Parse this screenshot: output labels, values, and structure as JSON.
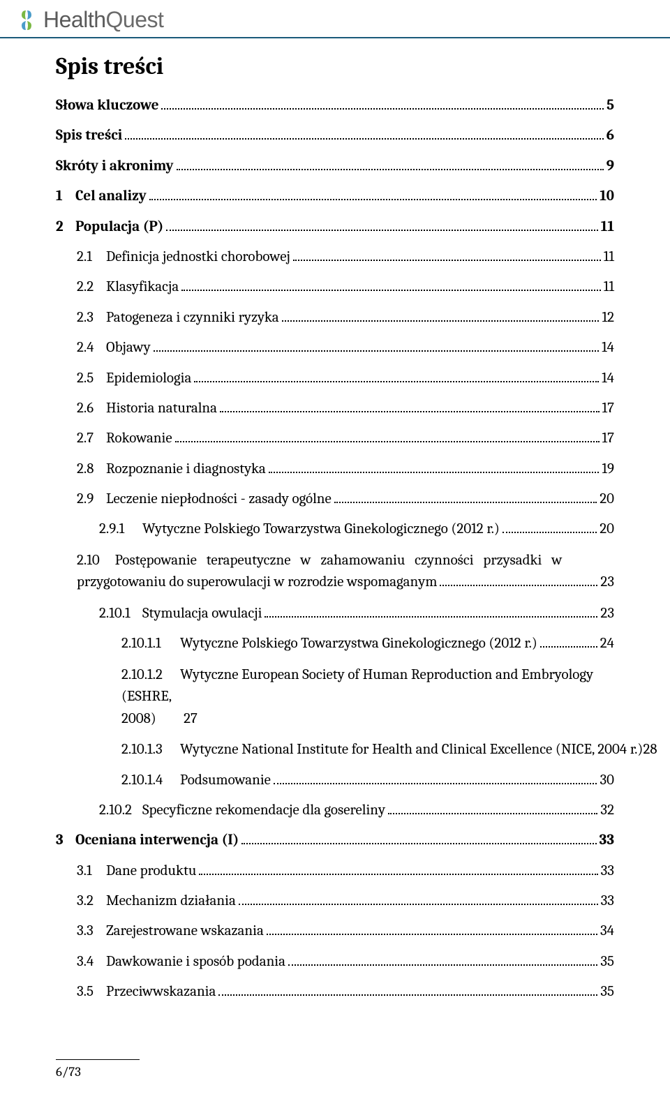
{
  "logo": {
    "text1": "Health",
    "text2": "Quest"
  },
  "toc_title": "Spis treści",
  "entries": [
    {
      "num": "",
      "label": "Słowa kluczowe",
      "page": "5",
      "bold": true,
      "indent": 0,
      "numw": ""
    },
    {
      "num": "",
      "label": "Spis treści",
      "page": "6",
      "bold": true,
      "indent": 0,
      "numw": ""
    },
    {
      "num": "",
      "label": "Skróty i akronimy",
      "page": "9",
      "bold": true,
      "indent": 0,
      "numw": ""
    },
    {
      "num": "1",
      "label": "Cel analizy",
      "page": "10",
      "bold": true,
      "indent": 0,
      "numw": "w1"
    },
    {
      "num": "2",
      "label": "Populacja (P)",
      "page": "11",
      "bold": true,
      "indent": 0,
      "numw": "w1"
    },
    {
      "num": "2.1",
      "label": "Definicja jednostki chorobowej",
      "page": "11",
      "bold": false,
      "indent": 1,
      "numw": "w2"
    },
    {
      "num": "2.2",
      "label": "Klasyfikacja",
      "page": "11",
      "bold": false,
      "indent": 1,
      "numw": "w2"
    },
    {
      "num": "2.3",
      "label": "Patogeneza i czynniki ryzyka",
      "page": "12",
      "bold": false,
      "indent": 1,
      "numw": "w2"
    },
    {
      "num": "2.4",
      "label": "Objawy",
      "page": "14",
      "bold": false,
      "indent": 1,
      "numw": "w2"
    },
    {
      "num": "2.5",
      "label": "Epidemiologia",
      "page": "14",
      "bold": false,
      "indent": 1,
      "numw": "w2"
    },
    {
      "num": "2.6",
      "label": "Historia naturalna",
      "page": "17",
      "bold": false,
      "indent": 1,
      "numw": "w2"
    },
    {
      "num": "2.7",
      "label": "Rokowanie",
      "page": "17",
      "bold": false,
      "indent": 1,
      "numw": "w2"
    },
    {
      "num": "2.8",
      "label": "Rozpoznanie i diagnostyka",
      "page": "19",
      "bold": false,
      "indent": 1,
      "numw": "w2"
    },
    {
      "num": "2.9",
      "label": "Leczenie niepłodności - zasady ogólne",
      "page": "20",
      "bold": false,
      "indent": 1,
      "numw": "w2"
    },
    {
      "num": "2.9.1",
      "label": "Wytyczne Polskiego Towarzystwa Ginekologicznego (2012 r.)",
      "page": "20",
      "bold": false,
      "indent": 2,
      "numw": "w3"
    }
  ],
  "multiline_210": {
    "num": "2.10",
    "text": "Postępowanie terapeutyczne w zahamowaniu czynności przysadki w przygotowaniu do superowulacji w rozrodzie wspomaganym",
    "page": "23"
  },
  "entries2": [
    {
      "num": "2.10.1",
      "label": "Stymulacja owulacji",
      "page": "23",
      "bold": false,
      "indent": 2,
      "numw": "w3"
    },
    {
      "num": "2.10.1.1",
      "label": "Wytyczne Polskiego Towarzystwa Ginekologicznego (2012 r.)",
      "page": "24",
      "bold": false,
      "indent": 3,
      "numw": "w4"
    }
  ],
  "multiline_21012": {
    "num": "2.10.1.2",
    "text": "Wytyczne European Society of Human Reproduction and Embryology (ESHRE, 2008)",
    "page": "27"
  },
  "entries3": [
    {
      "num": "2.10.1.3",
      "label": "Wytyczne National Institute for Health and Clinical Excellence (NICE, 2004 r.)",
      "page": "28",
      "bold": false,
      "indent": 3,
      "numw": "w4",
      "noleader": true
    },
    {
      "num": "2.10.1.4",
      "label": "Podsumowanie",
      "page": "30",
      "bold": false,
      "indent": 3,
      "numw": "w4"
    },
    {
      "num": "2.10.2",
      "label": "Specyficzne rekomendacje dla gosereliny",
      "page": "32",
      "bold": false,
      "indent": 2,
      "numw": "w3"
    },
    {
      "num": "3",
      "label": "Oceniana interwencja (I)",
      "page": "33",
      "bold": true,
      "indent": 0,
      "numw": "w1"
    },
    {
      "num": "3.1",
      "label": "Dane produktu",
      "page": "33",
      "bold": false,
      "indent": 1,
      "numw": "w2"
    },
    {
      "num": "3.2",
      "label": "Mechanizm działania",
      "page": "33",
      "bold": false,
      "indent": 1,
      "numw": "w2"
    },
    {
      "num": "3.3",
      "label": "Zarejestrowane wskazania",
      "page": "34",
      "bold": false,
      "indent": 1,
      "numw": "w2"
    },
    {
      "num": "3.4",
      "label": "Dawkowanie i sposób podania",
      "page": "35",
      "bold": false,
      "indent": 1,
      "numw": "w2"
    },
    {
      "num": "3.5",
      "label": "Przeciwwskazania",
      "page": "35",
      "bold": false,
      "indent": 1,
      "numw": "w2"
    }
  ],
  "footer": "6/73"
}
